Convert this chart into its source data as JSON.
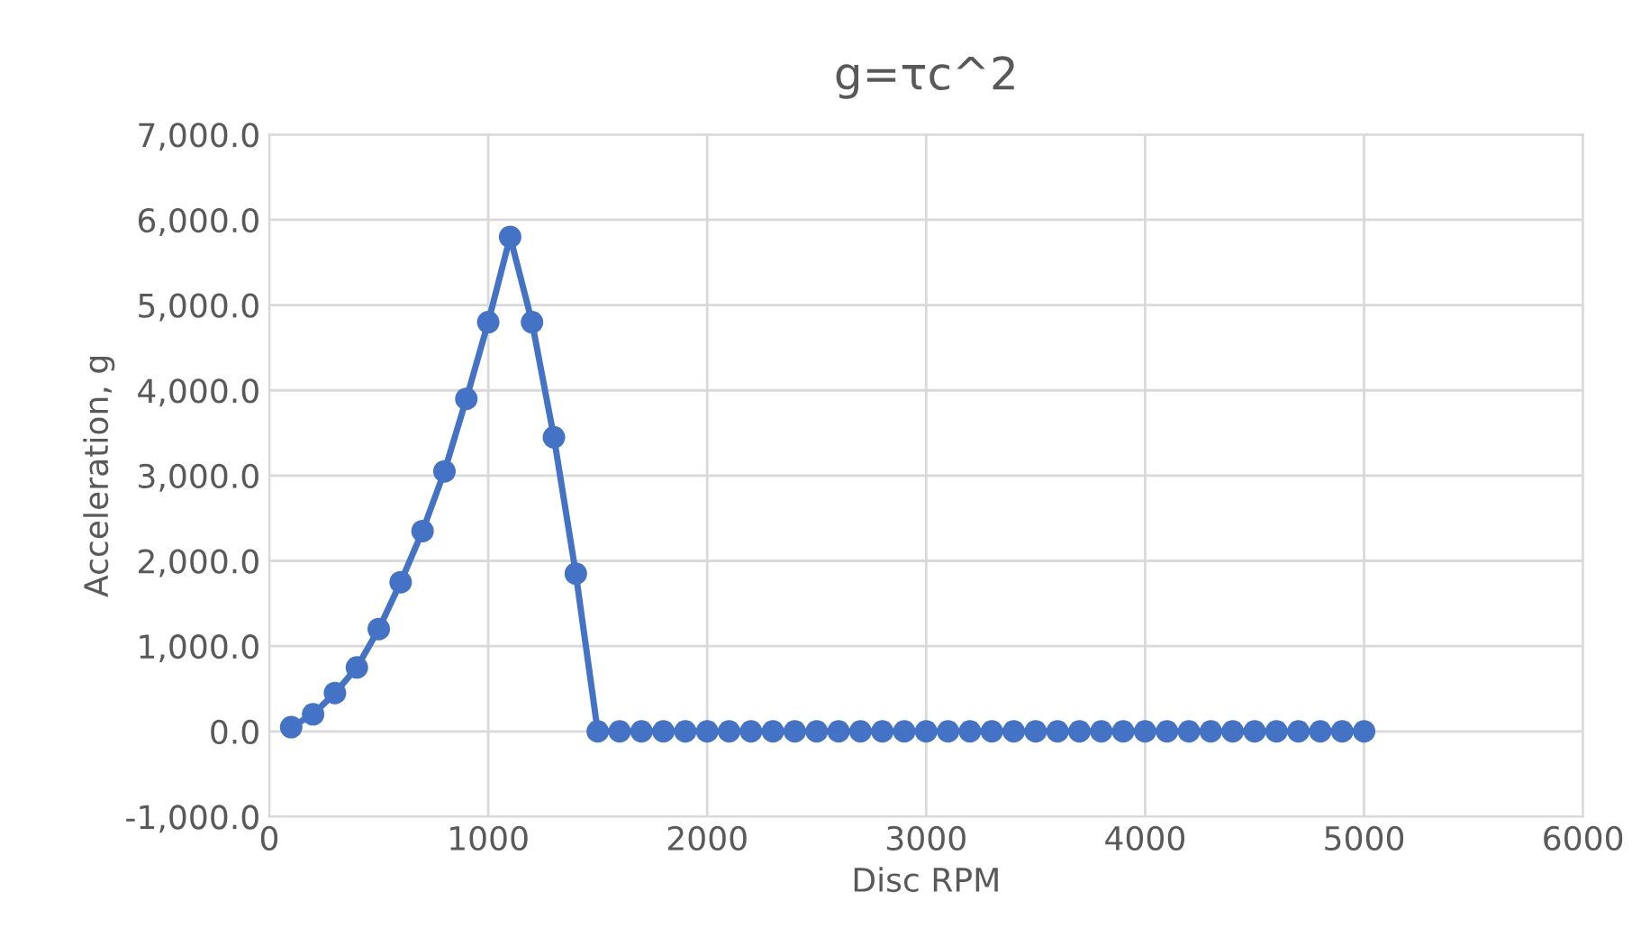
{
  "chart_data": {
    "type": "line",
    "title": "g=τc^2",
    "xlabel": "Disc RPM",
    "ylabel": "Acceleration, g",
    "x": [
      100,
      200,
      300,
      400,
      500,
      600,
      700,
      800,
      900,
      1000,
      1100,
      1200,
      1300,
      1400,
      1500,
      1600,
      1700,
      1800,
      1900,
      2000,
      2100,
      2200,
      2300,
      2400,
      2500,
      2600,
      2700,
      2800,
      2900,
      3000,
      3100,
      3200,
      3300,
      3400,
      3500,
      3600,
      3700,
      3800,
      3900,
      4000,
      4100,
      4200,
      4300,
      4400,
      4500,
      4600,
      4700,
      4800,
      4900,
      5000
    ],
    "series": [
      {
        "color": "#4472c4",
        "values": [
          50,
          200,
          450,
          750,
          1200,
          1750,
          2350,
          3050,
          3900,
          4800,
          5800,
          4800,
          3450,
          1850,
          0,
          0,
          0,
          0,
          0,
          0,
          0,
          0,
          0,
          0,
          0,
          0,
          0,
          0,
          0,
          0,
          0,
          0,
          0,
          0,
          0,
          0,
          0,
          0,
          0,
          0,
          0,
          0,
          0,
          0,
          0,
          0,
          0,
          0,
          0,
          0
        ]
      }
    ],
    "xlim": [
      0,
      6000
    ],
    "xticks": [
      0,
      1000,
      2000,
      3000,
      4000,
      5000,
      6000
    ],
    "ylim": [
      -1000,
      7000
    ],
    "yticks": [
      {
        "value": -1000,
        "label": "-1,000.0"
      },
      {
        "value": 0,
        "label": "0.0"
      },
      {
        "value": 1000,
        "label": "1,000.0"
      },
      {
        "value": 2000,
        "label": "2,000.0"
      },
      {
        "value": 3000,
        "label": "3,000.0"
      },
      {
        "value": 4000,
        "label": "4,000.0"
      },
      {
        "value": 5000,
        "label": "5,000.0"
      },
      {
        "value": 6000,
        "label": "6,000.0"
      },
      {
        "value": 7000,
        "label": "7,000.0"
      }
    ],
    "grid": true,
    "marker": "circle",
    "line_style": "solid"
  }
}
